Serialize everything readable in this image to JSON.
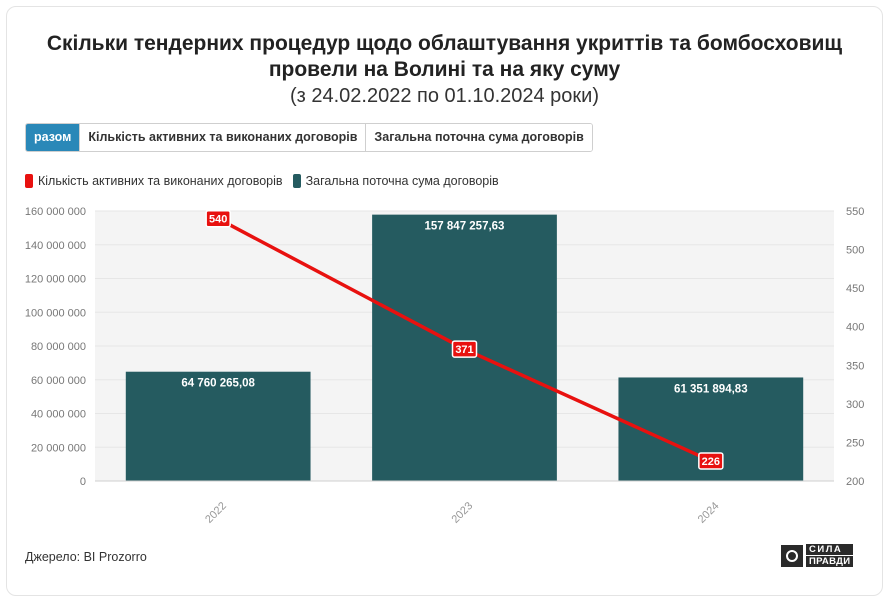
{
  "header": {
    "title_line1": "Скільки тендерних процедур щодо облаштування укриттів та бомбосховищ",
    "title_line2": "провели на Волині та на яку суму",
    "subtitle": "(з 24.02.2022 по 01.10.2024 роки)"
  },
  "tabs": [
    {
      "label": "разом",
      "active": true
    },
    {
      "label": "Кількість активних та виконаних договорів",
      "active": false
    },
    {
      "label": "Загальна поточна сума договорів",
      "active": false
    }
  ],
  "colors": {
    "line": "#e8110f",
    "bar": "#255b60",
    "tab_active": "#2a88b8",
    "grid": "#e6e6e6",
    "plot_bg": "#f4f4f4"
  },
  "chart_data": {
    "type": "bar",
    "categories": [
      "2022",
      "2023",
      "2024"
    ],
    "series": [
      {
        "name": "Кількість активних та виконаних договорів",
        "type": "line",
        "axis": "right",
        "values": [
          540,
          371,
          226
        ],
        "labels": [
          "540",
          "371",
          "226"
        ]
      },
      {
        "name": "Загальна поточна сума договорів",
        "type": "bar",
        "axis": "left",
        "values": [
          64760265.08,
          157847257.63,
          61351894.83
        ],
        "labels": [
          "64 760 265,08",
          "157 847 257,63",
          "61 351 894,83"
        ]
      }
    ],
    "y_left": {
      "range": [
        0,
        160000000
      ],
      "ticks": [
        0,
        20000000,
        40000000,
        60000000,
        80000000,
        100000000,
        120000000,
        140000000,
        160000000
      ],
      "tick_labels": [
        "0",
        "20 000 000",
        "40 000 000",
        "60 000 000",
        "80 000 000",
        "100 000 000",
        "120 000 000",
        "140 000 000",
        "160 000 000"
      ]
    },
    "y_right": {
      "range": [
        200,
        550
      ],
      "ticks": [
        200,
        250,
        300,
        350,
        400,
        450,
        500,
        550
      ],
      "tick_labels": [
        "200",
        "250",
        "300",
        "350",
        "400",
        "450",
        "500",
        "550"
      ]
    },
    "grid": true,
    "legend": "top-left"
  },
  "footer": {
    "source": "Джерело: BI Prozorro",
    "logo_line1": "СИЛА",
    "logo_line2": "ПРАВДИ"
  }
}
